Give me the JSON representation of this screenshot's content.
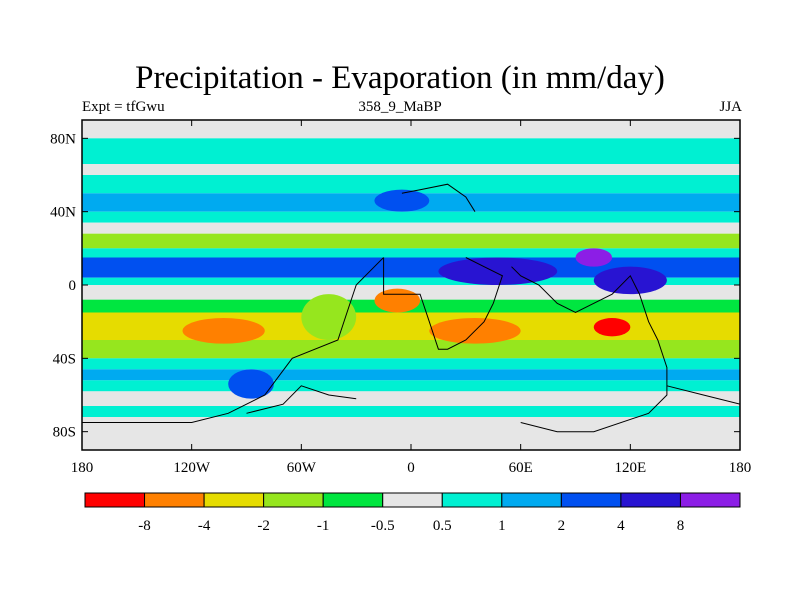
{
  "chart_data": {
    "type": "heatmap",
    "title": "Precipitation - Evaporation (in mm/day)",
    "subtitle_left": "Expt = tfGwu",
    "subtitle_center": "358_9_MaBP",
    "subtitle_right": "JJA",
    "x_ticks": [
      "180",
      "120W",
      "60W",
      "0",
      "60E",
      "120E",
      "180"
    ],
    "x_tick_values": [
      -180,
      -120,
      -60,
      0,
      60,
      120,
      180
    ],
    "y_ticks": [
      "80N",
      "40N",
      "0",
      "40S",
      "80S"
    ],
    "y_tick_values": [
      80,
      40,
      0,
      -40,
      -80
    ],
    "xlim": [
      -180,
      180
    ],
    "ylim": [
      -90,
      90
    ],
    "colorbar": {
      "colors": [
        "#ff0000",
        "#ff8000",
        "#e6dc00",
        "#96e61e",
        "#00e640",
        "#e6e6e6",
        "#00f0d2",
        "#00aaf0",
        "#0050f0",
        "#2814d2",
        "#8c1ee6"
      ],
      "labels": [
        "-8",
        "-4",
        "-2",
        "-1",
        "-0.5",
        "0.5",
        "1",
        "2",
        "4",
        "8"
      ]
    },
    "zonal_bands": [
      {
        "lat": [
          80,
          90
        ],
        "level": 5
      },
      {
        "lat": [
          66,
          80
        ],
        "level": 6
      },
      {
        "lat": [
          60,
          66
        ],
        "level": 5
      },
      {
        "lat": [
          50,
          60
        ],
        "level": 6
      },
      {
        "lat": [
          40,
          50
        ],
        "level": 7
      },
      {
        "lat": [
          34,
          40
        ],
        "level": 6
      },
      {
        "lat": [
          28,
          34
        ],
        "level": 5
      },
      {
        "lat": [
          20,
          28
        ],
        "level": 3
      },
      {
        "lat": [
          15,
          20
        ],
        "level": 6
      },
      {
        "lat": [
          4,
          15
        ],
        "level": 8
      },
      {
        "lat": [
          0,
          4
        ],
        "level": 6
      },
      {
        "lat": [
          -8,
          0
        ],
        "level": 5
      },
      {
        "lat": [
          -15,
          -8
        ],
        "level": 4
      },
      {
        "lat": [
          -30,
          -15
        ],
        "level": 2
      },
      {
        "lat": [
          -40,
          -30
        ],
        "level": 3
      },
      {
        "lat": [
          -46,
          -40
        ],
        "level": 6
      },
      {
        "lat": [
          -52,
          -46
        ],
        "level": 7
      },
      {
        "lat": [
          -58,
          -52
        ],
        "level": 6
      },
      {
        "lat": [
          -66,
          -58
        ],
        "level": 5
      },
      {
        "lat": [
          -72,
          -66
        ],
        "level": 6
      },
      {
        "lat": [
          -90,
          -72
        ],
        "level": 5
      }
    ],
    "features": [
      {
        "lon": [
          -125,
          -80
        ],
        "lat": [
          -32,
          -18
        ],
        "level": 1
      },
      {
        "lon": [
          10,
          60
        ],
        "lat": [
          -32,
          -18
        ],
        "level": 1
      },
      {
        "lon": [
          -20,
          5
        ],
        "lat": [
          -15,
          -2
        ],
        "level": 1
      },
      {
        "lon": [
          100,
          120
        ],
        "lat": [
          -28,
          -18
        ],
        "level": 0
      },
      {
        "lon": [
          15,
          80
        ],
        "lat": [
          0,
          15
        ],
        "level": 9
      },
      {
        "lon": [
          100,
          140
        ],
        "lat": [
          -5,
          10
        ],
        "level": 9
      },
      {
        "lon": [
          90,
          110
        ],
        "lat": [
          10,
          20
        ],
        "level": 10
      },
      {
        "lon": [
          -20,
          10
        ],
        "lat": [
          40,
          52
        ],
        "level": 8
      },
      {
        "lon": [
          -100,
          -75
        ],
        "lat": [
          -62,
          -46
        ],
        "level": 8
      },
      {
        "lon": [
          -60,
          -30
        ],
        "lat": [
          -30,
          -5
        ],
        "level": 3
      },
      {
        "lon": [
          -100,
          -60
        ],
        "lat": [
          -90,
          -72
        ],
        "level": 5
      }
    ],
    "coastlines": [
      [
        [
          -180,
          -75
        ],
        [
          -120,
          -75
        ],
        [
          -100,
          -70
        ],
        [
          -80,
          -60
        ],
        [
          -65,
          -40
        ],
        [
          -40,
          -30
        ],
        [
          -35,
          -15
        ],
        [
          -30,
          0
        ],
        [
          -20,
          10
        ],
        [
          -15,
          15
        ]
      ],
      [
        [
          -15,
          15
        ],
        [
          -15,
          -5
        ],
        [
          5,
          -5
        ],
        [
          10,
          -20
        ],
        [
          15,
          -35
        ],
        [
          20,
          -35
        ],
        [
          30,
          -30
        ],
        [
          40,
          -20
        ],
        [
          45,
          -10
        ],
        [
          50,
          5
        ],
        [
          40,
          10
        ],
        [
          30,
          15
        ]
      ],
      [
        [
          55,
          10
        ],
        [
          60,
          5
        ],
        [
          70,
          0
        ],
        [
          80,
          -10
        ],
        [
          90,
          -15
        ],
        [
          100,
          -10
        ],
        [
          110,
          -5
        ],
        [
          120,
          5
        ],
        [
          125,
          -5
        ],
        [
          130,
          -20
        ],
        [
          135,
          -30
        ],
        [
          140,
          -45
        ],
        [
          140,
          -60
        ],
        [
          130,
          -70
        ],
        [
          100,
          -80
        ],
        [
          80,
          -80
        ],
        [
          60,
          -75
        ]
      ],
      [
        [
          -90,
          -70
        ],
        [
          -70,
          -65
        ],
        [
          -60,
          -55
        ],
        [
          -45,
          -60
        ],
        [
          -30,
          -62
        ]
      ],
      [
        [
          -5,
          50
        ],
        [
          5,
          52
        ],
        [
          20,
          55
        ],
        [
          30,
          48
        ],
        [
          35,
          40
        ]
      ],
      [
        [
          140,
          -55
        ],
        [
          160,
          -60
        ],
        [
          180,
          -65
        ]
      ]
    ]
  }
}
